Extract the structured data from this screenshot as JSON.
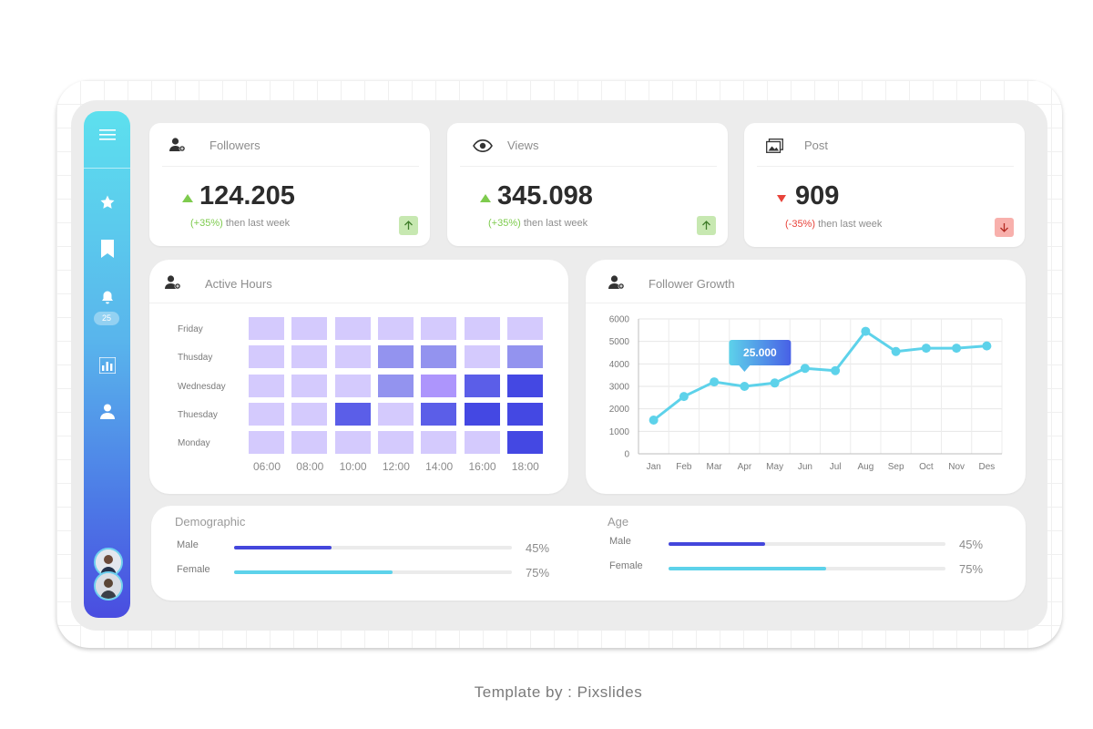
{
  "stats": {
    "followers": {
      "title": "Followers",
      "value": "124.205",
      "change": "(+35%)",
      "period": "then last week",
      "trend": "up"
    },
    "views": {
      "title": "Views",
      "value": "345.098",
      "change": "(+35%)",
      "period": "then last week",
      "trend": "up"
    },
    "post": {
      "title": "Post",
      "value": "909",
      "change": "(-35%)",
      "period": "then last week",
      "trend": "down"
    }
  },
  "sidebar": {
    "badge": "25",
    "icons": [
      "menu-icon",
      "star-icon",
      "bookmark-icon",
      "bell-icon",
      "bar-chart-icon",
      "user-icon"
    ]
  },
  "active_hours": {
    "title": "Active Hours",
    "days": [
      "Friday",
      "Thusday",
      "Wednesday",
      "Thuesday",
      "Monday"
    ],
    "hours": [
      "06:00",
      "08:00",
      "10:00",
      "12:00",
      "14:00",
      "16:00",
      "18:00"
    ],
    "levels": [
      [
        1,
        1,
        1,
        1,
        1,
        1,
        1
      ],
      [
        1,
        1,
        1,
        2,
        2,
        1,
        2
      ],
      [
        1,
        1,
        1,
        2,
        3,
        4,
        5
      ],
      [
        1,
        1,
        4,
        1,
        4,
        5,
        5
      ],
      [
        1,
        1,
        1,
        1,
        1,
        1,
        5
      ]
    ],
    "colors": {
      "1": "#d4cafd",
      "2": "#9393ef",
      "3": "#ad95fc",
      "4": "#5b5ee8",
      "5": "#4448e3"
    }
  },
  "follower_growth": {
    "title": "Follower Growth",
    "tooltip": "25.000",
    "chart_data": {
      "type": "line",
      "categories": [
        "Jan",
        "Feb",
        "Mar",
        "Apr",
        "May",
        "Jun",
        "Jul",
        "Aug",
        "Sep",
        "Oct",
        "Nov",
        "Des"
      ],
      "values": [
        1500,
        2550,
        3200,
        3000,
        3150,
        3800,
        3700,
        5450,
        4550,
        4700,
        4700,
        4800
      ],
      "yticks": [
        "0",
        "1000",
        "2000",
        "3000",
        "4000",
        "5000",
        "6000"
      ],
      "ylim": [
        0,
        6000
      ],
      "grid": true,
      "color": "#5dd2ea"
    }
  },
  "demographic": {
    "title": "Demographic",
    "rows": [
      {
        "label": "Male",
        "value": "45%",
        "fraction": 0.35,
        "color": "#4447dc"
      },
      {
        "label": "Female",
        "value": "75%",
        "fraction": 0.57,
        "color": "#5dd2ea"
      }
    ]
  },
  "age": {
    "title": "Age",
    "rows": [
      {
        "label": "Male",
        "value": "45%",
        "fraction": 0.35,
        "color": "#4447dc"
      },
      {
        "label": "Female",
        "value": "75%",
        "fraction": 0.57,
        "color": "#5dd2ea"
      }
    ]
  },
  "credit": "Template by : Pixslides"
}
